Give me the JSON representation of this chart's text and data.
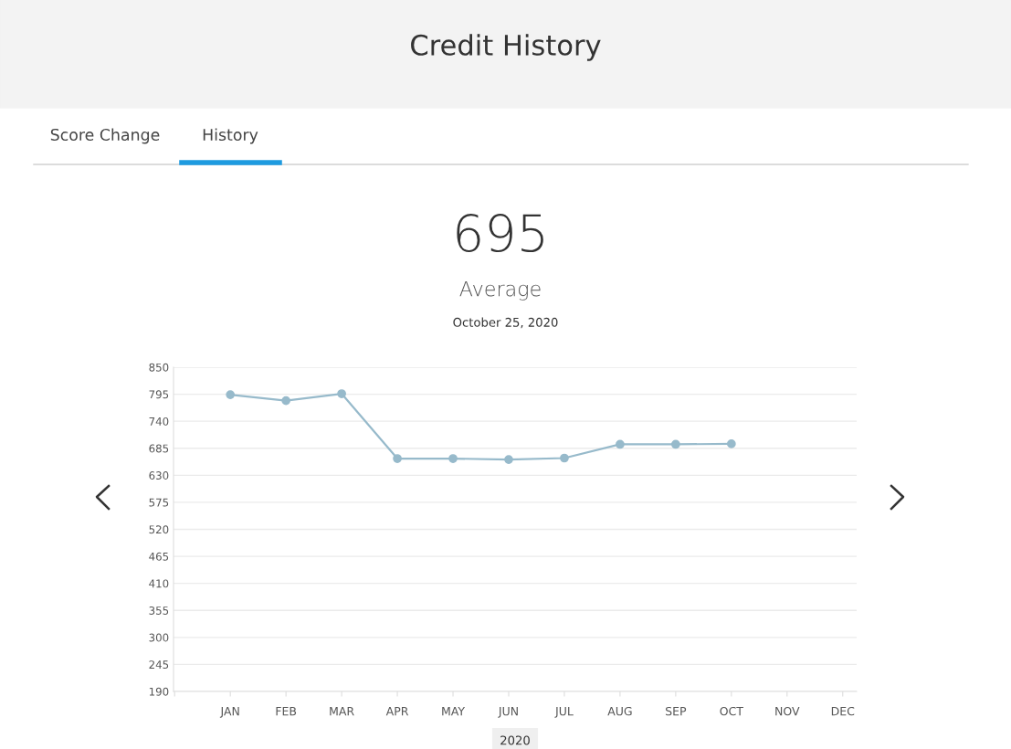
{
  "chart_data": {
    "type": "line",
    "title": "Credit History",
    "subtitle": "October 25, 2020",
    "annotations": [
      "Score Change",
      "History",
      "695",
      "Average"
    ],
    "xlabel": "2020",
    "categories": [
      null,
      "JAN",
      "FEB",
      "MAR",
      "APR",
      "MAY",
      "JUN",
      "JUL",
      "AUG",
      "SEP",
      "OCT",
      "NOV",
      "DEC"
    ],
    "series": [
      {
        "color": "#97bacb",
        "values": [
          null,
          794,
          782,
          796,
          664,
          664,
          662,
          665,
          693,
          693,
          694,
          null,
          null
        ]
      }
    ],
    "ylim": [
      190,
      850
    ],
    "yticks": [
      190,
      245,
      300,
      355,
      410,
      465,
      520,
      575,
      630,
      685,
      740,
      795,
      850
    ],
    "grid": "y",
    "marker": "circle",
    "line_style": "solid",
    "legend": false
  }
}
